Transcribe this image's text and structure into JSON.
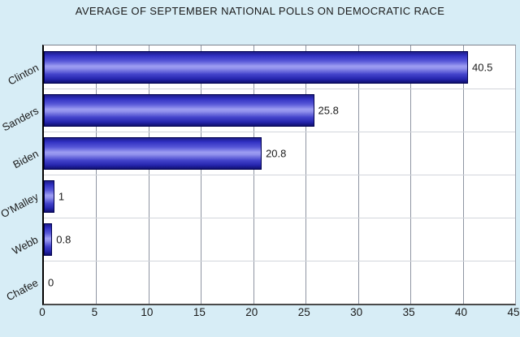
{
  "title": "AVERAGE OF SEPTEMBER NATIONAL POLLS ON DEMOCRATIC RACE",
  "chart_data": {
    "type": "bar",
    "orientation": "horizontal",
    "title": "AVERAGE OF SEPTEMBER NATIONAL POLLS ON DEMOCRATIC RACE",
    "categories": [
      "Clinton",
      "Sanders",
      "Biden",
      "O'Malley",
      "Webb",
      "Chafee"
    ],
    "values": [
      40.5,
      25.8,
      20.8,
      1,
      0.8,
      0
    ],
    "value_labels": [
      "40.5",
      "25.8",
      "20.8",
      "1",
      "0.8",
      "0"
    ],
    "xlabel": "",
    "ylabel": "",
    "xlim": [
      0,
      45
    ],
    "xticks": [
      0,
      5,
      10,
      15,
      20,
      25,
      30,
      35,
      40,
      45
    ],
    "grid": true,
    "legend": "none",
    "colors": {
      "page_background": "#d7edf6",
      "plot_background": "#ffffff",
      "bar_dark": "#1b1b86",
      "bar_mid": "#3535cf",
      "bar_highlight": "#9d9df2",
      "bar_border": "#00004f",
      "gridline": "#8f95a2",
      "row_separator": "#d2d5db",
      "axis": "#000000",
      "text": "#1a1a1a"
    }
  }
}
